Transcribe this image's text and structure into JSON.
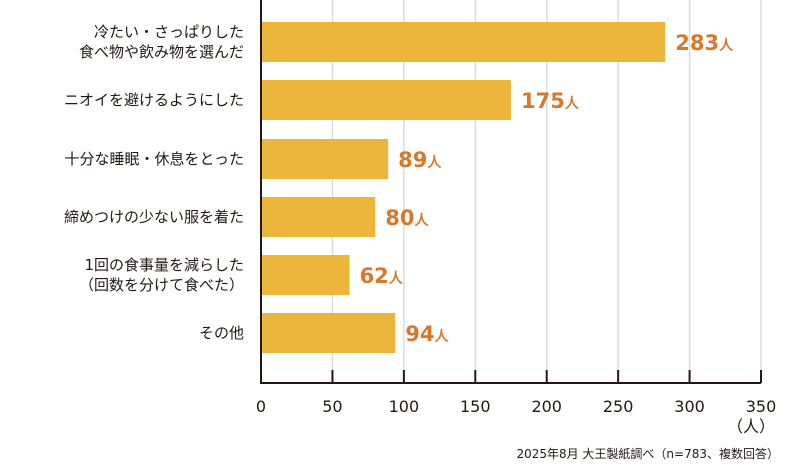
{
  "chart_data": {
    "type": "bar",
    "orientation": "horizontal",
    "categories": [
      [
        "冷たい・さっぱりした",
        "食べ物や飲み物を選んだ"
      ],
      [
        "ニオイを避けるようにした"
      ],
      [
        "十分な睡眠・休息をとった"
      ],
      [
        "締めつけの少ない服を着た"
      ],
      [
        "1回の食事量を減らした",
        "（回数を分けて食べた）"
      ],
      [
        "その他"
      ]
    ],
    "values": [
      283,
      175,
      89,
      80,
      62,
      94
    ],
    "value_unit": "人",
    "xlim": [
      0,
      350
    ],
    "xticks": [
      0,
      50,
      100,
      150,
      200,
      250,
      300,
      350
    ],
    "xlabel": "（人）",
    "grid": true,
    "bar_color": "#ecb63c",
    "label_color": "#d8782d",
    "source": "2025年8月 大王製紙調べ（n=783、複数回答）"
  }
}
